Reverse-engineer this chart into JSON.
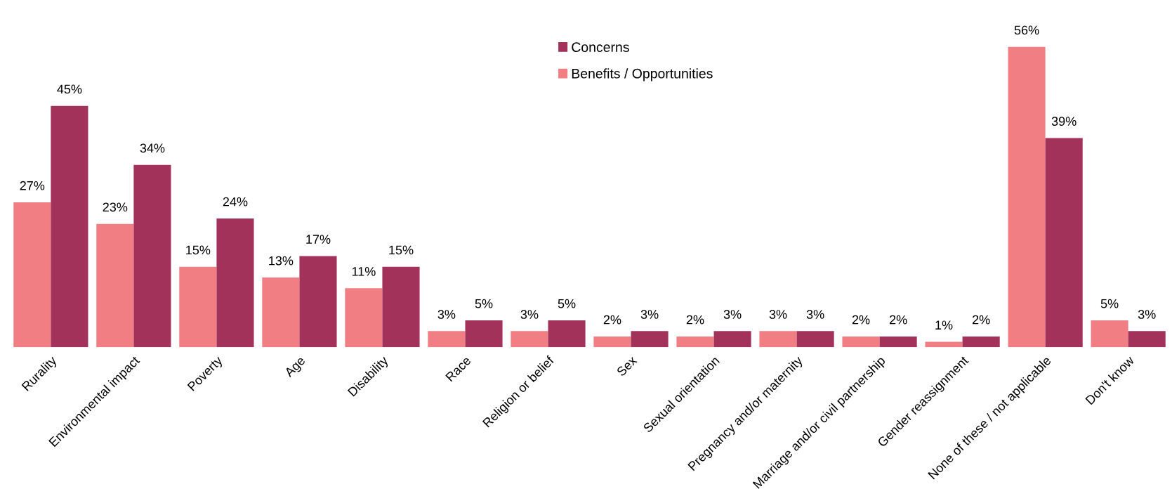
{
  "chart_data": {
    "type": "bar",
    "categories": [
      "Rurality",
      "Environmental impact",
      "Poverty",
      "Age",
      "Disability",
      "Race",
      "Religion or belief",
      "Sex",
      "Sexual orientation",
      "Pregnancy and/or maternity",
      "Marriage and/or civil partnership",
      "Gender reassignment",
      "None of these / not applicable",
      "Don't know"
    ],
    "series": [
      {
        "name": "Benefits / Opportunities",
        "color": "#f07e82",
        "values": [
          27,
          23,
          15,
          13,
          11,
          3,
          3,
          2,
          2,
          3,
          2,
          1,
          56,
          5
        ],
        "value_labels": [
          "27%",
          "23%",
          "15%",
          "13%",
          "11%",
          "3%",
          "3%",
          "2%",
          "2%",
          "3%",
          "2%",
          "1%",
          "56%",
          "5%"
        ]
      },
      {
        "name": "Concerns",
        "color": "#a3325a",
        "values": [
          45,
          34,
          24,
          17,
          15,
          5,
          5,
          3,
          3,
          3,
          2,
          2,
          39,
          3
        ],
        "value_labels": [
          "45%",
          "34%",
          "24%",
          "17%",
          "15%",
          "5%",
          "5%",
          "3%",
          "3%",
          "3%",
          "2%",
          "2%",
          "39%",
          "3%"
        ]
      }
    ],
    "legend": "top",
    "grid": false
  }
}
